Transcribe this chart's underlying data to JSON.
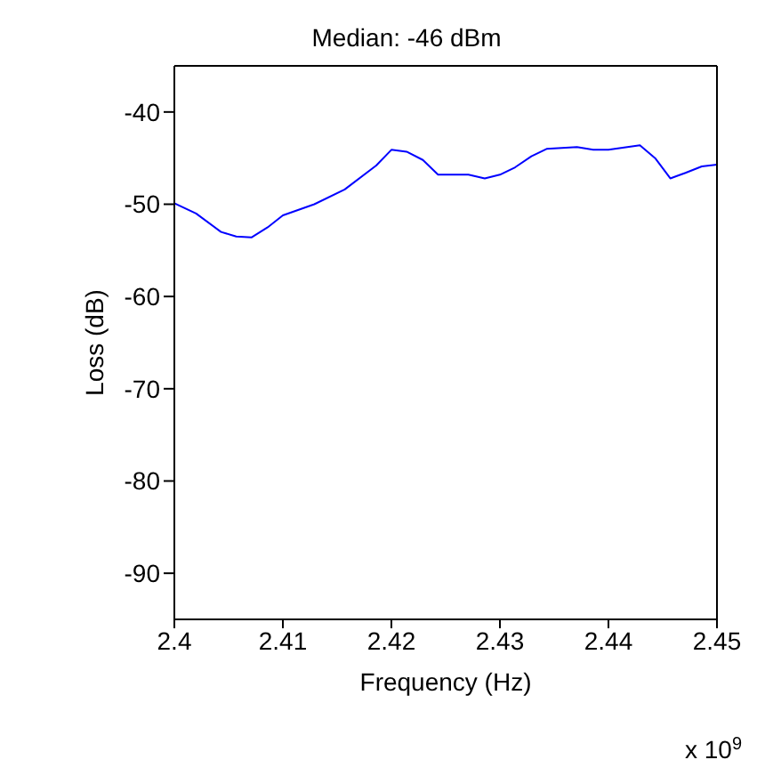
{
  "chart_data": {
    "type": "line",
    "title": "Median: -46 dBm",
    "xlabel": "Frequency (Hz)",
    "ylabel": "Loss (dB)",
    "annotations": [
      "x 10$^{9}$"
    ],
    "x": [
      2.4,
      2.402,
      2.4043,
      2.4057,
      2.4071,
      2.4086,
      2.41,
      2.4129,
      2.4157,
      2.4186,
      2.42,
      2.4214,
      2.4229,
      2.4243,
      2.4271,
      2.4286,
      2.43,
      2.4314,
      2.4329,
      2.4343,
      2.4371,
      2.4386,
      2.44,
      2.4429,
      2.4443,
      2.4457,
      2.4471,
      2.4486,
      2.45
    ],
    "series": [
      {
        "color": "#0000ff",
        "values": [
          -49.9,
          -51,
          -53,
          -53.5,
          -53.6,
          -52.5,
          -51.2,
          -50,
          -48.4,
          -45.8,
          -44.1,
          -44.3,
          -45.2,
          -46.8,
          -46.8,
          -47.2,
          -46.8,
          -46,
          -44.8,
          -44,
          -43.8,
          -44.1,
          -44.1,
          -43.6,
          -45,
          -47.2,
          -46.6,
          -45.9,
          -45.7
        ]
      }
    ],
    "xlim": [
      2.4,
      2.45
    ],
    "xticks": [
      2.4,
      2.41,
      2.42,
      2.43,
      2.44,
      2.45
    ],
    "ylim": [
      -95,
      -35
    ],
    "yticks": [
      -90,
      -80,
      -70,
      -60,
      -50,
      -40
    ],
    "grid": false,
    "marker": "none",
    "line_style": "solid"
  }
}
